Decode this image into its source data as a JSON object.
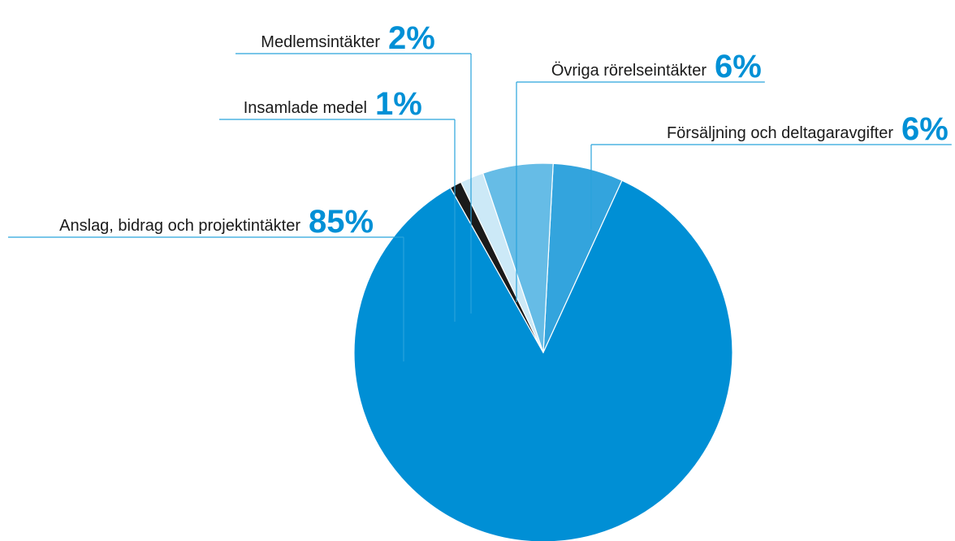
{
  "chart_data": {
    "type": "pie",
    "categories": [
      "Försäljning och deltagaravgifter",
      "Anslag, bidrag och projektintäkter",
      "Insamlade medel",
      "Medlemsintäkter",
      "Övriga rörelseintäkter"
    ],
    "values": [
      6,
      85,
      1,
      2,
      6
    ],
    "value_labels": [
      "6%",
      "85%",
      "1%",
      "2%",
      "6%"
    ],
    "colors": [
      "#33a4dd",
      "#008fd5",
      "#1a1a1a",
      "#cce9f7",
      "#66bce6"
    ]
  }
}
